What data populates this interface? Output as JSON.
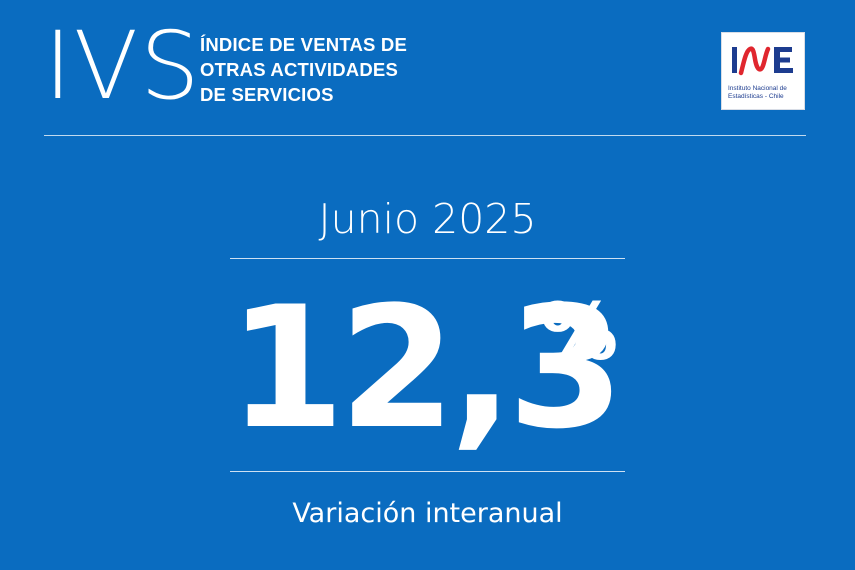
{
  "header": {
    "acronym": "IVS",
    "title_lines": [
      "ÍNDICE DE VENTAS DE",
      "OTRAS ACTIVIDADES",
      "DE SERVICIOS"
    ]
  },
  "logo": {
    "text": "INE",
    "caption_line1": "Instituto Nacional de",
    "caption_line2": "Estadísticas - Chile",
    "colors": {
      "blue": "#1d3c8f",
      "red": "#e0262e"
    }
  },
  "main": {
    "period": "Junio 2025",
    "value": "12,3",
    "unit": "%",
    "description": "Variación interanual"
  },
  "colors": {
    "background": "#0a6cc0",
    "text": "#ffffff"
  }
}
